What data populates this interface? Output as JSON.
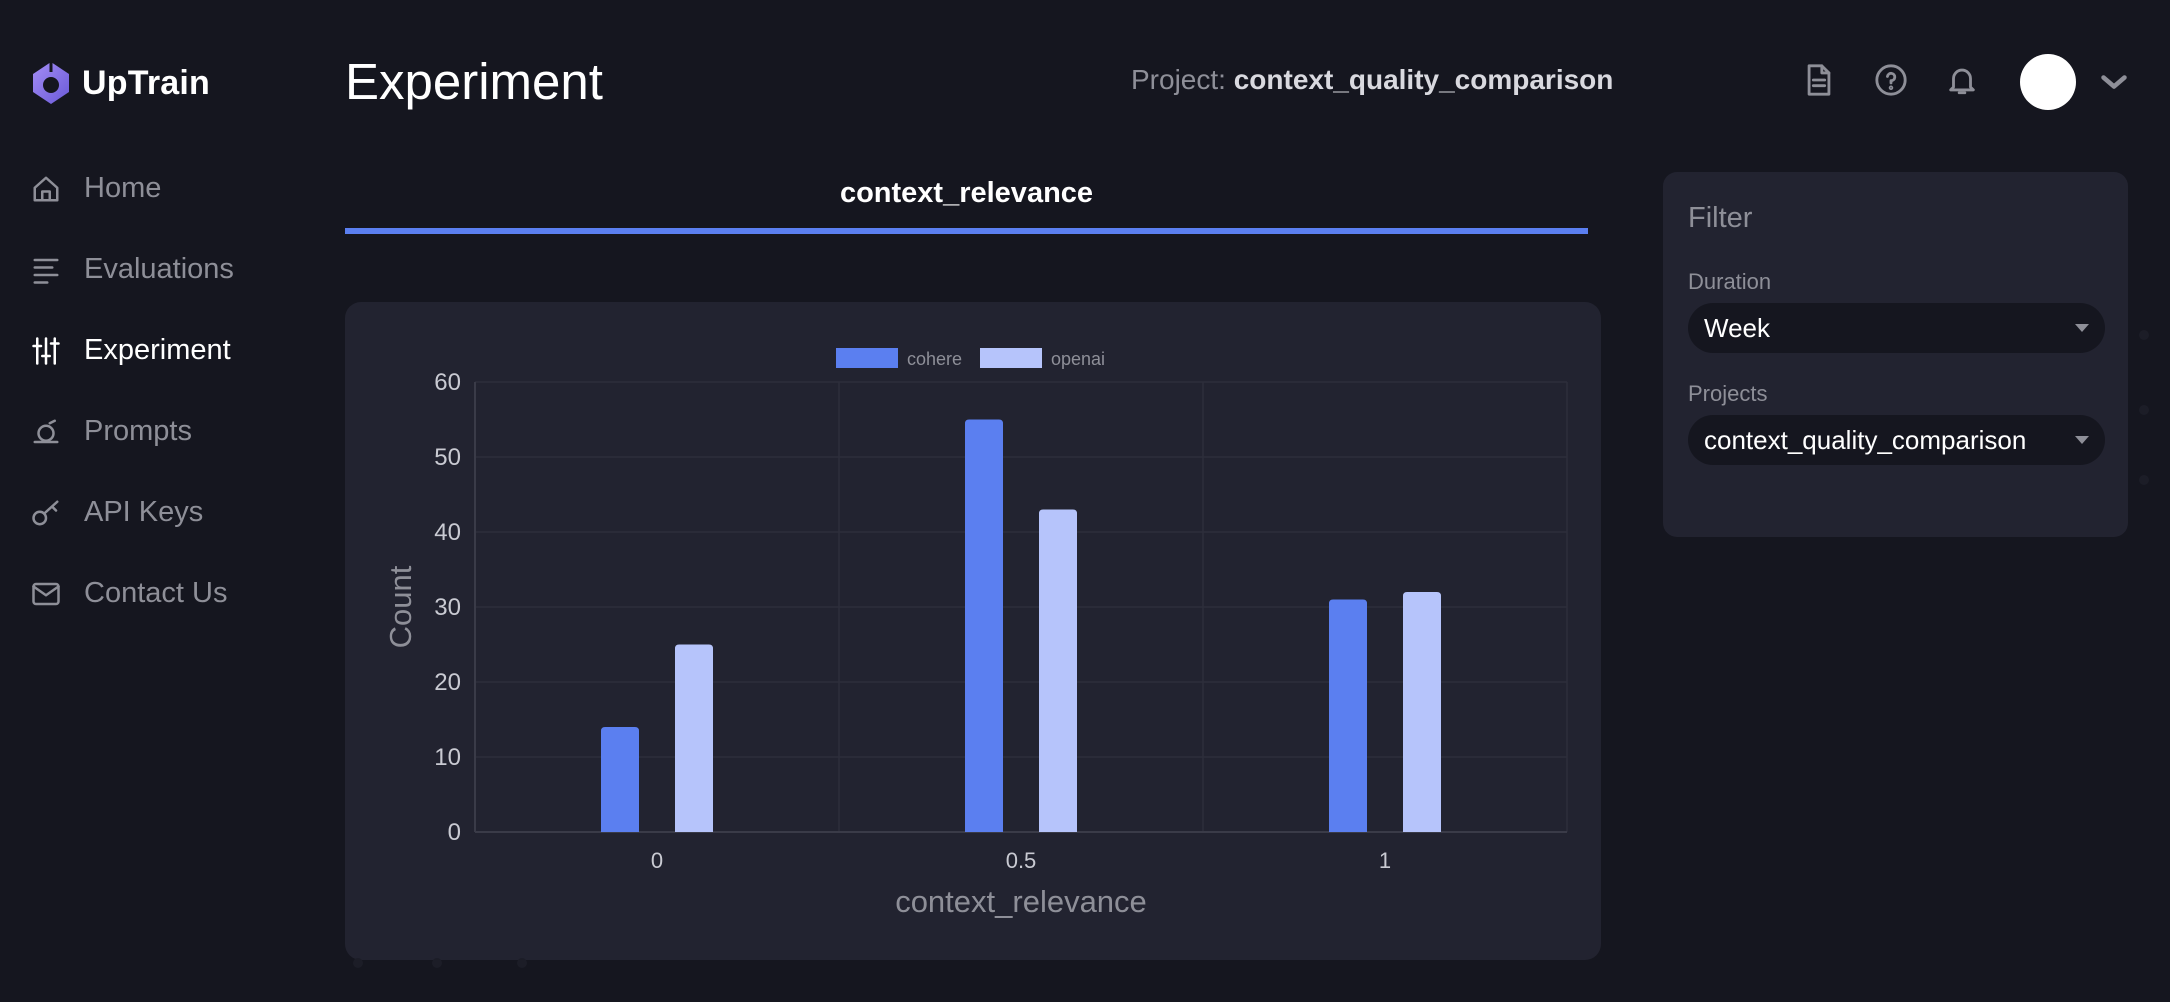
{
  "brand": {
    "name": "UpTrain"
  },
  "sidebar": {
    "items": [
      {
        "label": "Home",
        "icon": "home-icon"
      },
      {
        "label": "Evaluations",
        "icon": "list-icon"
      },
      {
        "label": "Experiment",
        "icon": "sliders-icon",
        "active": true
      },
      {
        "label": "Prompts",
        "icon": "prompt-icon"
      },
      {
        "label": "API Keys",
        "icon": "key-icon"
      },
      {
        "label": "Contact Us",
        "icon": "mail-icon"
      }
    ]
  },
  "header": {
    "title": "Experiment",
    "project_prefix": "Project:",
    "project_name": "context_quality_comparison",
    "icons": [
      "document-icon",
      "help-icon",
      "bell-icon",
      "chevron-down-icon"
    ]
  },
  "tabs": [
    {
      "label": "context_relevance",
      "active": true
    }
  ],
  "chart_data": {
    "type": "bar",
    "categories": [
      "0",
      "0.5",
      "1"
    ],
    "series": [
      {
        "name": "cohere",
        "values": [
          14,
          55,
          31
        ],
        "color": "#5b7ff0"
      },
      {
        "name": "openai",
        "values": [
          25,
          43,
          32
        ],
        "color": "#b6c4fb"
      }
    ],
    "xlabel": "context_relevance",
    "ylabel": "Count",
    "ylim": [
      0,
      60
    ],
    "yticks": [
      0,
      10,
      20,
      30,
      40,
      50,
      60
    ],
    "grid": true,
    "legend": "top-center"
  },
  "filter": {
    "title": "Filter",
    "duration_label": "Duration",
    "duration_value": "Week",
    "projects_label": "Projects",
    "projects_value": "context_quality_comparison"
  },
  "colors": {
    "background": "#15161f",
    "panel": "#222330",
    "accent": "#5b7ff0"
  }
}
